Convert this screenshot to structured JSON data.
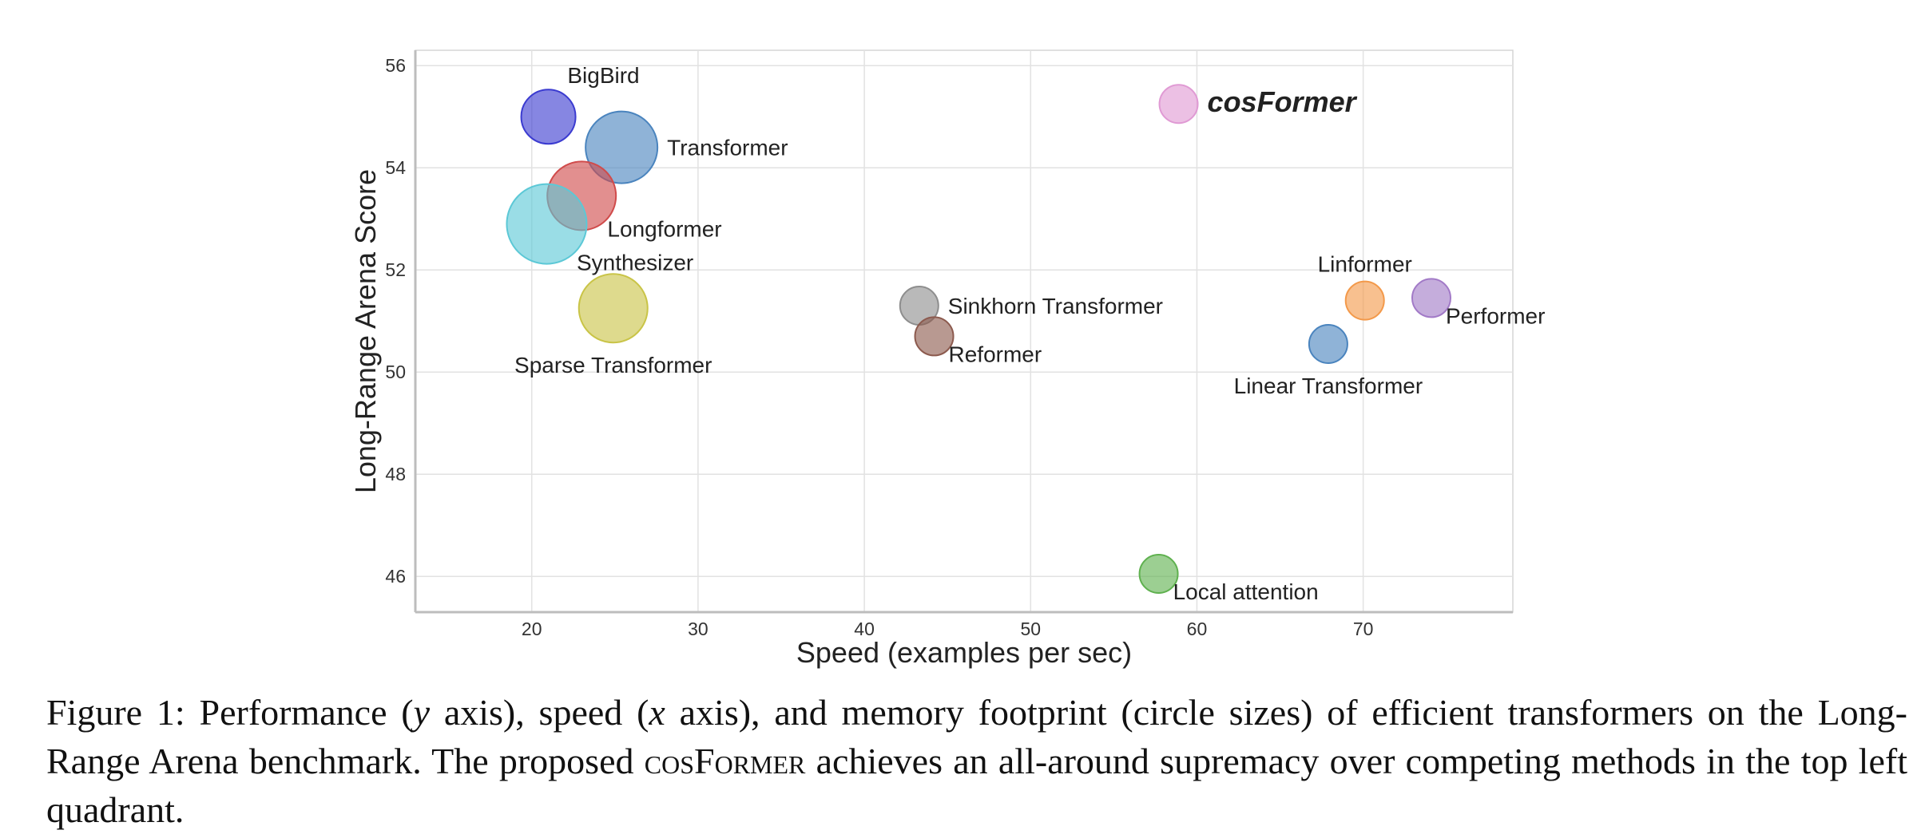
{
  "chart_data": {
    "type": "scatter",
    "subtype": "bubble",
    "xlabel": "Speed (examples per sec)",
    "ylabel": "Long-Range Arena Score",
    "xlim": [
      13,
      79
    ],
    "ylim": [
      45.3,
      56.3
    ],
    "xticks": [
      "20",
      "30",
      "40",
      "50",
      "60",
      "70"
    ],
    "yticks": [
      "46",
      "48",
      "50",
      "52",
      "54",
      "56"
    ],
    "grid": true,
    "points": [
      {
        "name": "BigBird",
        "x": 21.0,
        "y": 55.0,
        "size": 34,
        "color": "#3b3bd0",
        "label_pos": "top-right"
      },
      {
        "name": "Transformer",
        "x": 25.4,
        "y": 54.4,
        "size": 45,
        "color": "#4a84be",
        "label_pos": "right"
      },
      {
        "name": "Longformer",
        "x": 23.0,
        "y": 53.45,
        "size": 43,
        "color": "#d04b4b",
        "label_pos": "bottom-right"
      },
      {
        "name": "Synthesizer",
        "x": 20.9,
        "y": 52.9,
        "size": 50,
        "color": "#5cc8d6",
        "label_pos": "bottom-right"
      },
      {
        "name": "Sparse Transformer",
        "x": 24.9,
        "y": 51.25,
        "size": 43,
        "color": "#c9c447",
        "label_pos": "bottom"
      },
      {
        "name": "Sinkhorn Transformer",
        "x": 43.3,
        "y": 51.3,
        "size": 24,
        "color": "#8e8e8e",
        "label_pos": "right"
      },
      {
        "name": "Reformer",
        "x": 44.2,
        "y": 50.7,
        "size": 24,
        "color": "#8c5a4e",
        "label_pos": "bottom-right"
      },
      {
        "name": "Local attention",
        "x": 57.7,
        "y": 46.05,
        "size": 24,
        "color": "#5fb14f",
        "label_pos": "bottom-right"
      },
      {
        "name": "Linformer",
        "x": 70.1,
        "y": 51.4,
        "size": 24,
        "color": "#f3994a",
        "label_pos": "top"
      },
      {
        "name": "Performer",
        "x": 74.1,
        "y": 51.45,
        "size": 24,
        "color": "#a27ac7",
        "label_pos": "bottom-right"
      },
      {
        "name": "Linear Transformer",
        "x": 67.9,
        "y": 50.55,
        "size": 24,
        "color": "#4a84be",
        "label_pos": "bottom"
      },
      {
        "name": "cosFormer",
        "x": 58.9,
        "y": 55.25,
        "size": 24,
        "color": "#e09ad4",
        "label_pos": "right",
        "highlight": true,
        "label_color": "#c0393b"
      }
    ]
  },
  "caption": {
    "figure_label": "Figure 1:",
    "part1": "Performance (",
    "var_y": "y",
    "part2": " axis), speed (",
    "var_x": "x",
    "part3": " axis), and memory footprint (circle sizes) of efficient transformers on the Long-Range Arena benchmark.  The proposed ",
    "method_name": "cosFormer",
    "part4": " achieves an all-around supremacy over competing methods in the top left quadrant."
  }
}
